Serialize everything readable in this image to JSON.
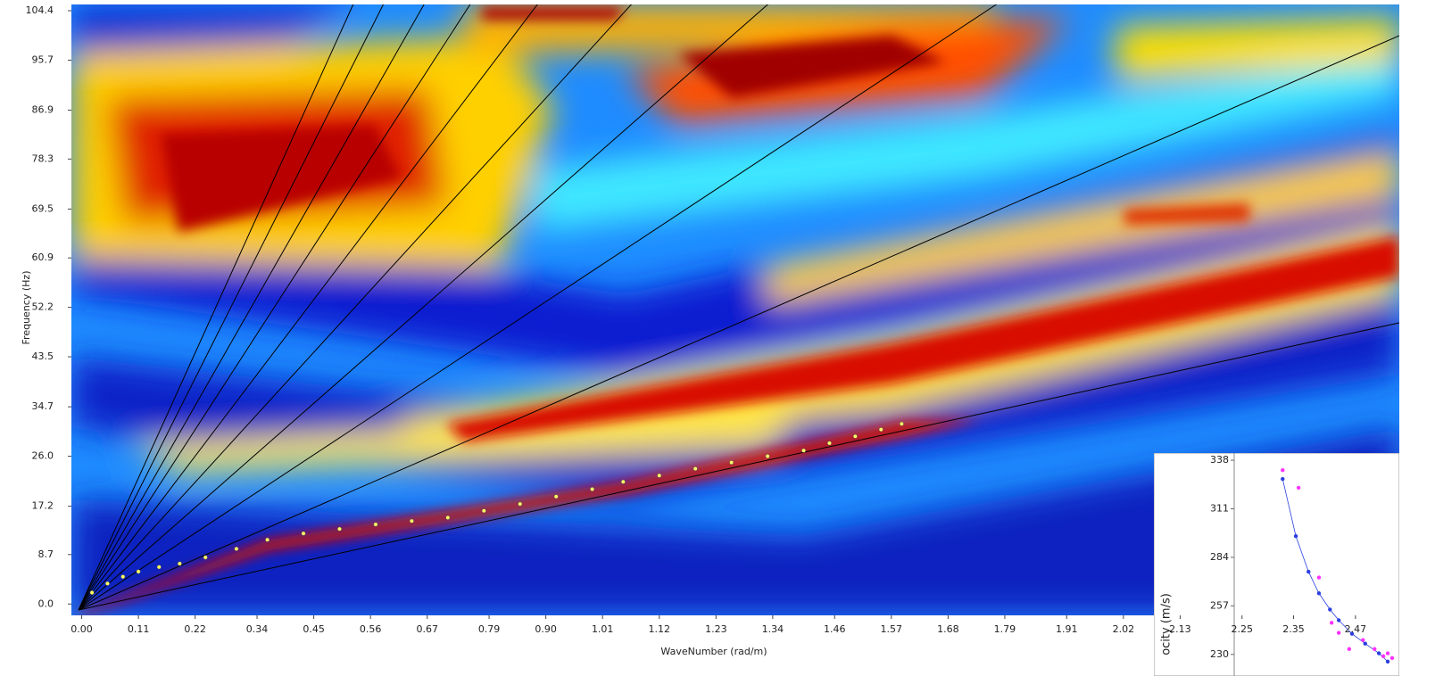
{
  "chart_data": [
    {
      "type": "scatter",
      "xlabel": "WaveNumber (rad/m)",
      "ylabel": "Frequency (Hz)",
      "xlim": [
        -0.02,
        2.555
      ],
      "ylim": [
        -2.0,
        105.5
      ],
      "xticks": [
        {
          "value": 0,
          "label": "0.00"
        },
        0.11,
        0.22,
        0.34,
        0.45,
        0.56,
        0.67,
        0.79,
        {
          "value": 0.9,
          "label": "0.90"
        },
        1.01,
        1.12,
        1.23,
        1.34,
        1.46,
        1.57,
        1.68,
        1.79,
        1.91,
        2.02,
        2.13,
        2.25,
        2.35,
        2.47
      ],
      "yticks": [
        {
          "value": 0,
          "label": "0.0"
        },
        8.7,
        17.2,
        {
          "value": 26,
          "label": "26.0"
        },
        34.7,
        43.5,
        52.2,
        60.9,
        69.5,
        78.3,
        86.9,
        95.7,
        104.4
      ],
      "color": "#ffff66",
      "x": [
        0.02,
        0.05,
        0.08,
        0.11,
        0.15,
        0.19,
        0.24,
        0.3,
        0.36,
        0.43,
        0.5,
        0.57,
        0.64,
        0.71,
        0.78,
        0.85,
        0.92,
        0.99,
        1.05,
        1.12,
        1.19,
        1.26,
        1.33,
        1.4,
        1.45,
        1.5,
        1.55,
        1.59
      ],
      "values": [
        2.0,
        3.6,
        4.8,
        5.7,
        6.5,
        7.1,
        8.2,
        9.7,
        11.3,
        12.4,
        13.2,
        14.0,
        14.6,
        15.2,
        16.4,
        17.6,
        18.9,
        20.2,
        21.5,
        22.6,
        23.8,
        24.9,
        26.0,
        27.0,
        28.3,
        29.5,
        30.7,
        31.7
      ]
    },
    {
      "type": "scatter",
      "ylabel": "ocity (m/s)",
      "xlim": [
        0,
        30
      ],
      "ylim": [
        218,
        342
      ],
      "yticks": [
        338,
        311,
        284,
        257,
        230
      ],
      "series": [
        {
          "color": "#2a3fe0",
          "x": [
            8.8,
            11.2,
            13.5,
            15.4,
            17.4,
            19.0,
            21.4,
            23.8,
            26.3,
            27.9
          ],
          "values": [
            327.6,
            295.8,
            276,
            264,
            255,
            249,
            241.5,
            236,
            230.6,
            226
          ]
        },
        {
          "color": "#ff33ff",
          "x": [
            8.8,
            11.7,
            15.4,
            17.7,
            19.0,
            20.9,
            23.4,
            25.5,
            27.1,
            27.9,
            28.7
          ],
          "values": [
            332.5,
            322.7,
            272.8,
            247.6,
            242,
            233,
            238,
            233,
            229,
            230.6,
            228
          ]
        }
      ]
    }
  ]
}
